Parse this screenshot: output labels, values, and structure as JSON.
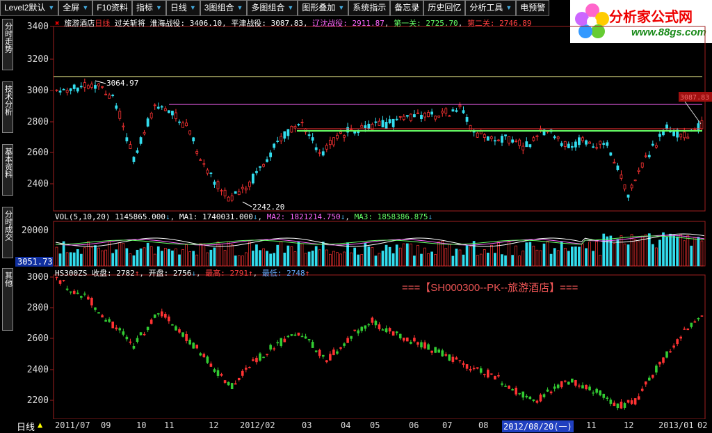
{
  "toolbar": {
    "items": [
      {
        "label": "Level2默认",
        "arrow": true
      },
      {
        "label": "全屏",
        "arrow": true
      },
      {
        "label": "F10资料",
        "arrow": false
      },
      {
        "label": "指标",
        "arrow": true
      },
      {
        "label": "日线",
        "arrow": true
      },
      {
        "label": "3图组合",
        "arrow": true
      },
      {
        "label": "多图组合",
        "arrow": true
      },
      {
        "label": "图形叠加",
        "arrow": true
      },
      {
        "label": "系统指示",
        "arrow": false
      },
      {
        "label": "备忘录",
        "arrow": false
      },
      {
        "label": "历史回忆",
        "arrow": false
      },
      {
        "label": "分析工具",
        "arrow": true
      },
      {
        "label": "电预警",
        "arrow": false
      }
    ]
  },
  "logo": {
    "title": "分析家公式网",
    "url": "www.88gs.com"
  },
  "sidebar": {
    "tabs": [
      {
        "label": "分时走势"
      },
      {
        "label": "技术分析"
      },
      {
        "label": "基本资料"
      },
      {
        "label": "分时成交"
      },
      {
        "label": "其他"
      }
    ]
  },
  "main_panel": {
    "stock_name": "旅游酒店",
    "period": "日线",
    "formula": "过关斩将",
    "fields": [
      {
        "label": "淮海战役:",
        "value": "3406.10",
        "color": "#ffffff"
      },
      {
        "label": "平津战役:",
        "value": "3087.83",
        "color": "#ffffff"
      },
      {
        "label": "辽沈战役:",
        "value": "2911.87",
        "color": "#ff66ff"
      },
      {
        "label": "第一关:",
        "value": "2725.70",
        "color": "#66ff66"
      },
      {
        "label": "第二关:",
        "value": "2746.89",
        "color": "#ff4040"
      }
    ],
    "y_ticks": [
      "3400",
      "3200",
      "3000",
      "2800",
      "2600",
      "2400"
    ],
    "high_label": "3064.97",
    "low_label": "2242.20",
    "right_tag": "3087.83"
  },
  "volume_panel": {
    "title": "VOL(5,10,20)",
    "value": "1145865.000",
    "fields": [
      {
        "label": "MA1:",
        "value": "1740031.000",
        "color": "#ffffff"
      },
      {
        "label": "MA2:",
        "value": "1821214.750",
        "color": "#ff66ff"
      },
      {
        "label": "MA3:",
        "value": "1858386.875",
        "color": "#66ff66"
      }
    ],
    "y_tick": "20000",
    "cursor_value": "3051.73"
  },
  "index_panel": {
    "code": "HS300ZS",
    "fields": [
      {
        "label": "收盘:",
        "value": "2782",
        "color": "#ffffff"
      },
      {
        "label": "开盘:",
        "value": "2756",
        "color": "#ffffff"
      },
      {
        "label": "最高:",
        "value": "2791",
        "color": "#ff4040"
      },
      {
        "label": "最低:",
        "value": "2748",
        "color": "#66aaff"
      }
    ],
    "y_ticks": [
      "3000",
      "2800",
      "2600",
      "2400",
      "2200"
    ],
    "watermark": "===【SH000300--PK--旅游酒店】==="
  },
  "x_axis": {
    "period_label": "日线",
    "labels": [
      "2011/07",
      "09",
      "10",
      "11",
      "12",
      "2012/02",
      "03",
      "04",
      "05",
      "06",
      "07",
      "08",
      "2012/08/20(一)",
      "11",
      "12",
      "2013/01",
      "02"
    ]
  },
  "colors": {
    "up": "#ff3333",
    "down": "#33ddee",
    "ma_white": "#ffffff",
    "ma_pink": "#ff66ff",
    "ma_green": "#66ff66",
    "axis": "#a02020",
    "grid": "#5a1010"
  }
}
